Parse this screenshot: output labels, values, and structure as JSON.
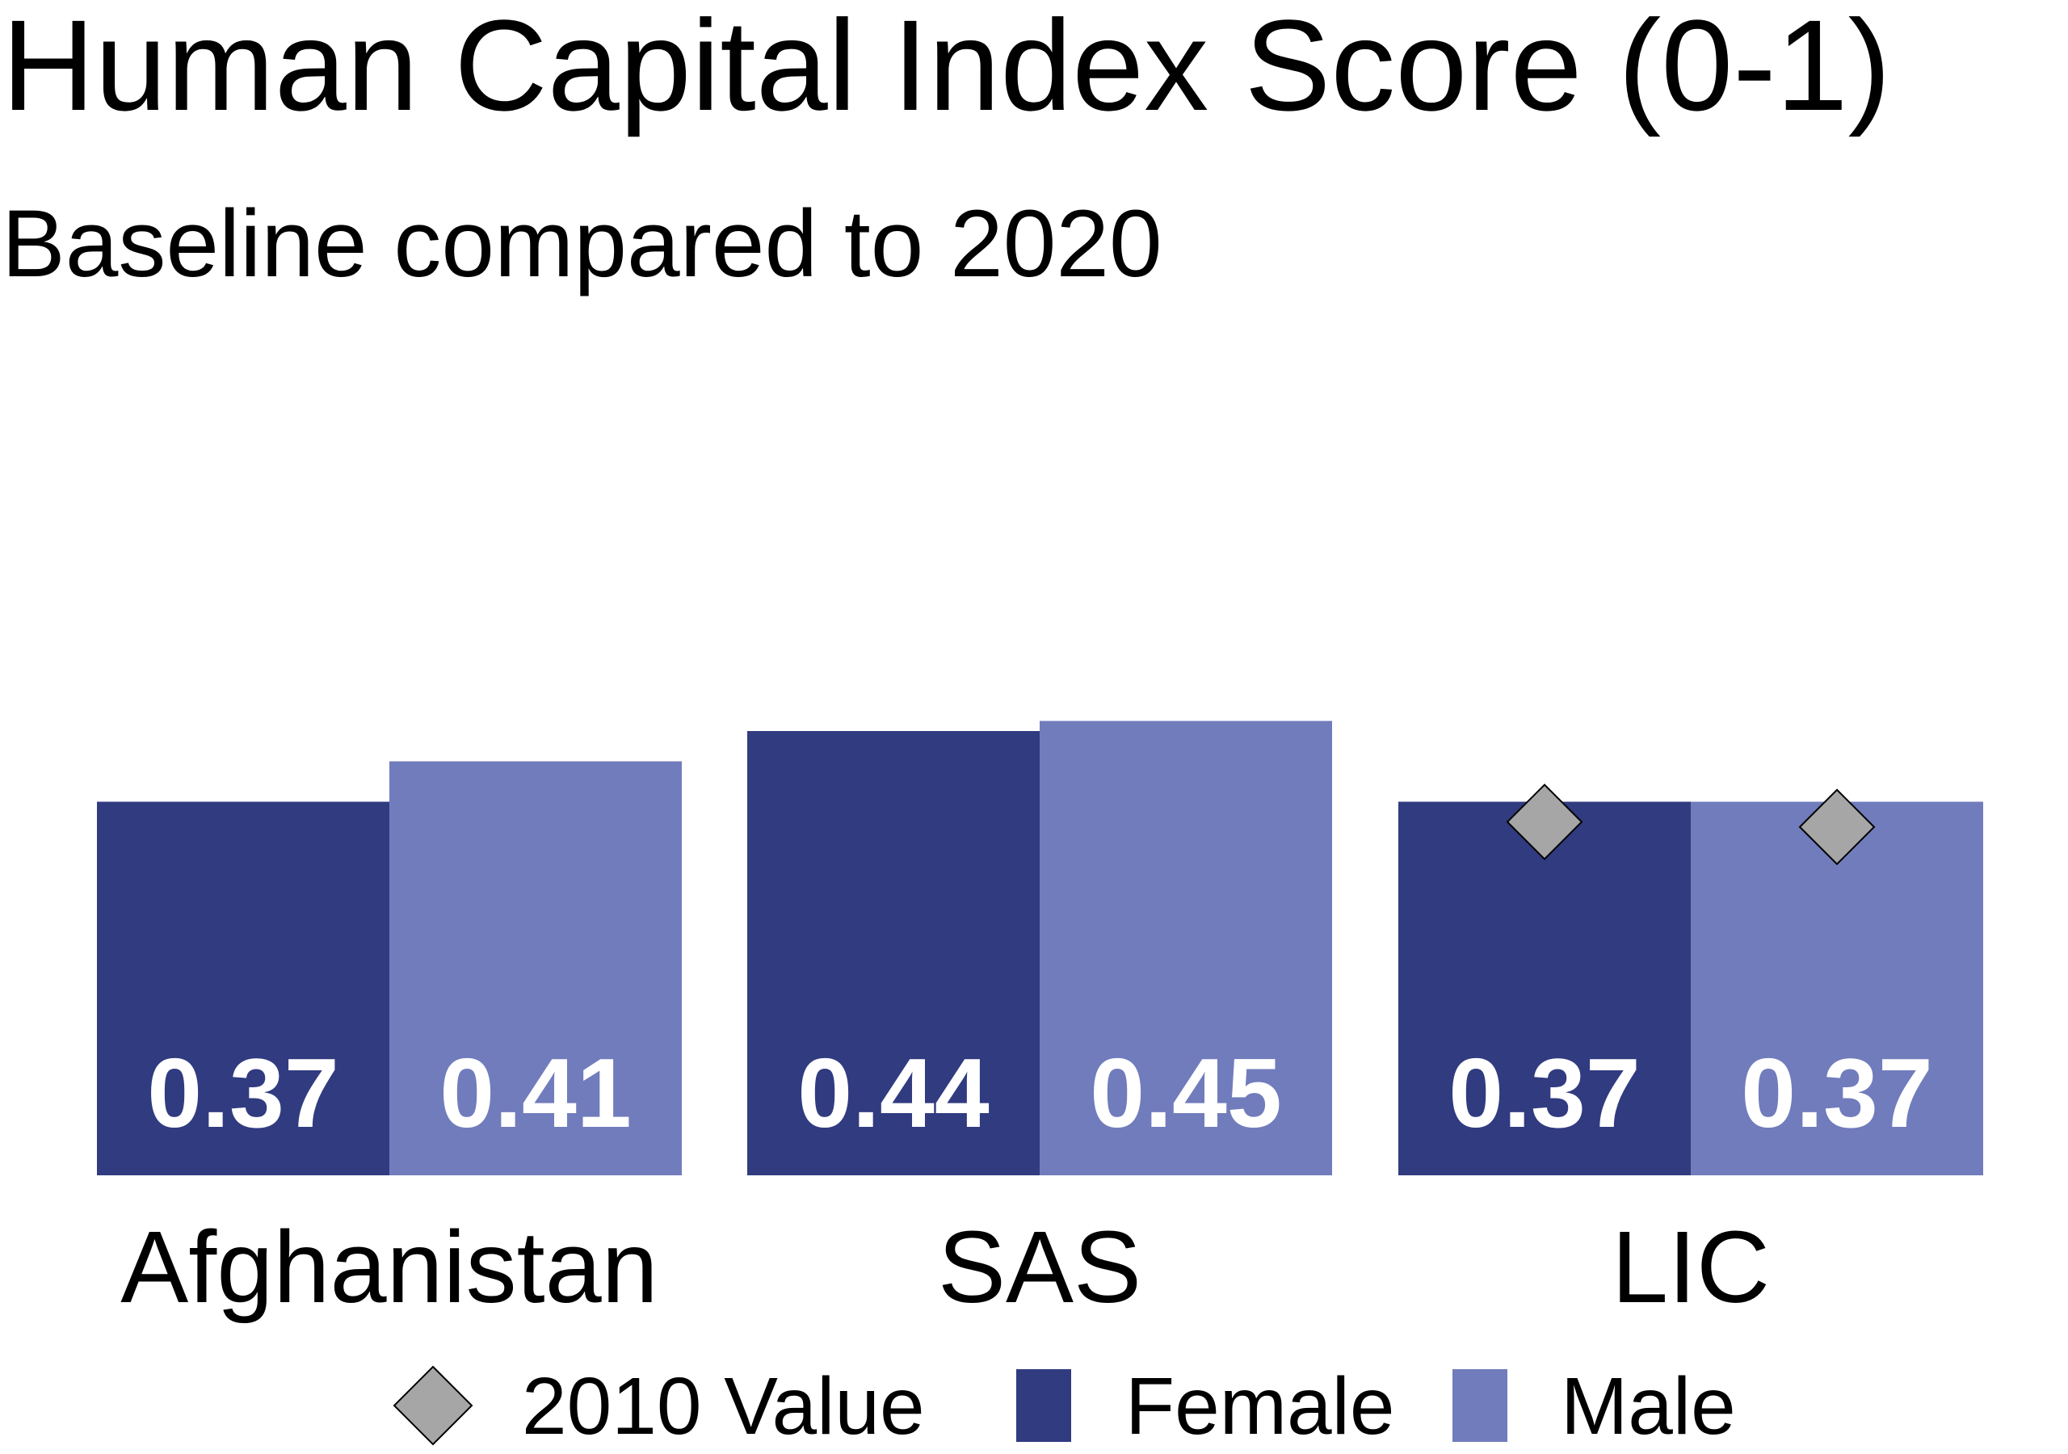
{
  "chart_data": {
    "type": "bar",
    "title": "Human Capital Index Score (0-1)",
    "subtitle": "Baseline compared to 2020",
    "categories": [
      "Afghanistan",
      "SAS",
      "LIC"
    ],
    "series": [
      {
        "name": "Female",
        "color": "#313b80",
        "values": [
          0.37,
          0.44,
          0.37
        ]
      },
      {
        "name": "Male",
        "color": "#717cbc",
        "values": [
          0.41,
          0.45,
          0.37
        ]
      }
    ],
    "value_labels": {
      "Female": [
        "0.37",
        "0.44",
        "0.37"
      ],
      "Male": [
        "0.41",
        "0.45",
        "0.37"
      ]
    },
    "markers_2010": {
      "name": "2010 Value",
      "color": "#a6a6a6",
      "shape": "diamond",
      "Female": [
        null,
        null,
        0.35
      ],
      "Male": [
        null,
        null,
        0.345
      ]
    },
    "legend": {
      "position": "bottom",
      "entries": [
        "2010 Value",
        "Female",
        "Male"
      ]
    },
    "ylim": [
      0,
      1
    ],
    "grid": false,
    "xlabel": "",
    "ylabel": ""
  }
}
